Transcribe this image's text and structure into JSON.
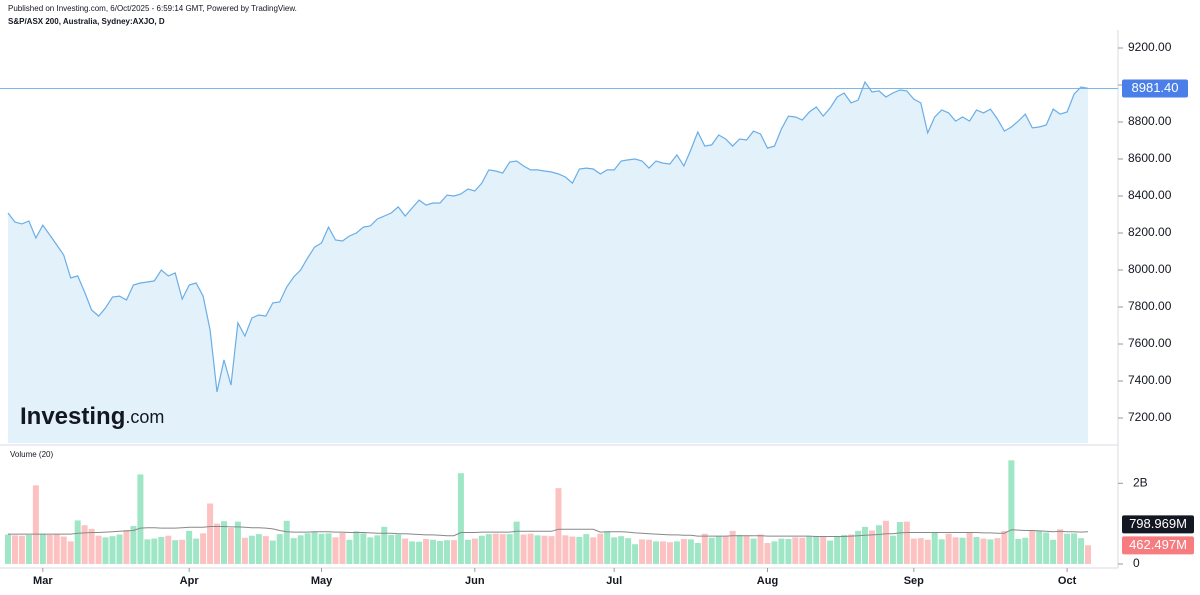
{
  "header": {
    "published": "Published on Investing.com, 6/Oct/2025 - 6:59:14 GMT, Powered by TradingView.",
    "symbol": "S&P/ASX 200, Australia, Sydney:AXJO, D"
  },
  "watermark": {
    "brand": "Investing",
    "suffix": ".com"
  },
  "chart_data": [
    {
      "type": "area",
      "line_color": "#6aaee6",
      "fill_color": "#e3f1fb",
      "values": [
        8308,
        8259,
        8249,
        8265,
        8173,
        8243,
        8189,
        8135,
        8081,
        7957,
        7968,
        7881,
        7784,
        7751,
        7795,
        7854,
        7859,
        7838,
        7919,
        7930,
        7935,
        7941,
        8000,
        7968,
        7984,
        7843,
        7919,
        7930,
        7859,
        7676,
        7341,
        7514,
        7378,
        7714,
        7643,
        7741,
        7757,
        7751,
        7822,
        7827,
        7908,
        7962,
        8000,
        8065,
        8124,
        8146,
        8232,
        8162,
        8157,
        8184,
        8200,
        8232,
        8238,
        8276,
        8292,
        8308,
        8341,
        8292,
        8335,
        8378,
        8351,
        8362,
        8362,
        8405,
        8400,
        8411,
        8438,
        8427,
        8470,
        8541,
        8535,
        8524,
        8584,
        8589,
        8562,
        8541,
        8541,
        8535,
        8530,
        8519,
        8503,
        8470,
        8546,
        8551,
        8546,
        8519,
        8541,
        8541,
        8589,
        8595,
        8600,
        8589,
        8551,
        8589,
        8578,
        8573,
        8622,
        8562,
        8649,
        8746,
        8670,
        8676,
        8730,
        8708,
        8670,
        8708,
        8703,
        8751,
        8735,
        8659,
        8670,
        8762,
        8832,
        8827,
        8811,
        8854,
        8881,
        8832,
        8876,
        8935,
        8957,
        8903,
        8919,
        9016,
        8962,
        8968,
        8935,
        8957,
        8973,
        8968,
        8924,
        8903,
        8741,
        8827,
        8865,
        8849,
        8805,
        8827,
        8805,
        8865,
        8849,
        8870,
        8816,
        8751,
        8773,
        8805,
        8843,
        8768,
        8773,
        8784,
        8870,
        8843,
        8854,
        8951,
        8989,
        8981.4
      ],
      "last_label": {
        "value": 8981.4,
        "label": "8981.40"
      },
      "last_color": "#4a7ee8",
      "xlim": [
        0,
        155
      ],
      "xticks": [
        {
          "value": 5,
          "label": "Mar"
        },
        {
          "value": 26,
          "label": "Apr"
        },
        {
          "value": 45,
          "label": "May"
        },
        {
          "value": 67,
          "label": "Jun"
        },
        {
          "value": 87,
          "label": "Jul"
        },
        {
          "value": 109,
          "label": "Aug"
        },
        {
          "value": 130,
          "label": "Sep"
        },
        {
          "value": 152,
          "label": "Oct"
        }
      ],
      "ylim": [
        7065,
        9300
      ],
      "yticks": [
        {
          "value": 7200,
          "label": "7200.00"
        },
        {
          "value": 7400,
          "label": "7400.00"
        },
        {
          "value": 7600,
          "label": "7600.00"
        },
        {
          "value": 7800,
          "label": "7800.00"
        },
        {
          "value": 8000,
          "label": "8000.00"
        },
        {
          "value": 8200,
          "label": "8200.00"
        },
        {
          "value": 8400,
          "label": "8400.00"
        },
        {
          "value": 8600,
          "label": "8600.00"
        },
        {
          "value": 8800,
          "label": "8800.00"
        },
        {
          "value": 9000,
          "label": "9000.00"
        },
        {
          "value": 9200,
          "label": "9200.00"
        }
      ]
    },
    {
      "type": "bar",
      "title": "Volume (20)",
      "up_color": "#9fe6c6",
      "down_color": "#fcc2c2",
      "ma_color": "#888888",
      "values": [
        730000000.0,
        710000000.0,
        700000000.0,
        720000000.0,
        1950000000.0,
        740000000.0,
        720000000.0,
        730000000.0,
        680000000.0,
        560000000.0,
        1080000000.0,
        960000000.0,
        870000000.0,
        700000000.0,
        660000000.0,
        690000000.0,
        730000000.0,
        840000000.0,
        940000000.0,
        2220000000.0,
        610000000.0,
        630000000.0,
        670000000.0,
        700000000.0,
        590000000.0,
        600000000.0,
        820000000.0,
        630000000.0,
        760000000.0,
        1500000000.0,
        1000000000.0,
        1060000000.0,
        890000000.0,
        1050000000.0,
        650000000.0,
        700000000.0,
        740000000.0,
        690000000.0,
        580000000.0,
        740000000.0,
        1070000000.0,
        640000000.0,
        710000000.0,
        760000000.0,
        790000000.0,
        750000000.0,
        760000000.0,
        660000000.0,
        770000000.0,
        600000000.0,
        810000000.0,
        760000000.0,
        660000000.0,
        710000000.0,
        920000000.0,
        720000000.0,
        730000000.0,
        630000000.0,
        560000000.0,
        550000000.0,
        620000000.0,
        600000000.0,
        570000000.0,
        590000000.0,
        590000000.0,
        2250000000.0,
        600000000.0,
        630000000.0,
        700000000.0,
        740000000.0,
        750000000.0,
        740000000.0,
        740000000.0,
        1050000000.0,
        730000000.0,
        750000000.0,
        710000000.0,
        700000000.0,
        690000000.0,
        1880000000.0,
        710000000.0,
        680000000.0,
        670000000.0,
        740000000.0,
        660000000.0,
        750000000.0,
        810000000.0,
        660000000.0,
        690000000.0,
        640000000.0,
        490000000.0,
        610000000.0,
        600000000.0,
        560000000.0,
        560000000.0,
        540000000.0,
        560000000.0,
        620000000.0,
        610000000.0,
        520000000.0,
        750000000.0,
        650000000.0,
        690000000.0,
        680000000.0,
        820000000.0,
        720000000.0,
        710000000.0,
        630000000.0,
        730000000.0,
        520000000.0,
        560000000.0,
        630000000.0,
        620000000.0,
        660000000.0,
        650000000.0,
        680000000.0,
        690000000.0,
        690000000.0,
        580000000.0,
        680000000.0,
        720000000.0,
        730000000.0,
        820000000.0,
        920000000.0,
        830000000.0,
        960000000.0,
        1070000000.0,
        700000000.0,
        1040000000.0,
        1050000000.0,
        630000000.0,
        640000000.0,
        600000000.0,
        780000000.0,
        610000000.0,
        750000000.0,
        660000000.0,
        650000000.0,
        780000000.0,
        670000000.0,
        630000000.0,
        610000000.0,
        640000000.0,
        820000000.0,
        2570000000.0,
        620000000.0,
        650000000.0,
        840000000.0,
        820000000.0,
        780000000.0,
        600000000.0,
        860000000.0,
        750000000.0,
        760000000.0,
        640000000.0,
        462497000.0
      ],
      "ma": [
        740000000.0,
        740000000.0,
        740000000.0,
        740000000.0,
        740000000.0,
        740000000.0,
        740000000.0,
        740000000.0,
        740000000.0,
        740000000.0,
        760000000.0,
        770000000.0,
        780000000.0,
        780000000.0,
        790000000.0,
        800000000.0,
        810000000.0,
        820000000.0,
        830000000.0,
        890000000.0,
        900000000.0,
        900000000.0,
        890000000.0,
        890000000.0,
        890000000.0,
        900000000.0,
        910000000.0,
        910000000.0,
        910000000.0,
        930000000.0,
        930000000.0,
        930000000.0,
        920000000.0,
        920000000.0,
        910000000.0,
        900000000.0,
        900000000.0,
        890000000.0,
        870000000.0,
        830000000.0,
        800000000.0,
        790000000.0,
        790000000.0,
        790000000.0,
        800000000.0,
        800000000.0,
        800000000.0,
        790000000.0,
        790000000.0,
        780000000.0,
        780000000.0,
        780000000.0,
        770000000.0,
        760000000.0,
        760000000.0,
        760000000.0,
        750000000.0,
        750000000.0,
        740000000.0,
        730000000.0,
        720000000.0,
        720000000.0,
        710000000.0,
        700000000.0,
        700000000.0,
        780000000.0,
        780000000.0,
        780000000.0,
        790000000.0,
        790000000.0,
        790000000.0,
        790000000.0,
        790000000.0,
        810000000.0,
        810000000.0,
        810000000.0,
        810000000.0,
        810000000.0,
        810000000.0,
        860000000.0,
        860000000.0,
        860000000.0,
        860000000.0,
        860000000.0,
        860000000.0,
        790000000.0,
        800000000.0,
        800000000.0,
        800000000.0,
        790000000.0,
        770000000.0,
        760000000.0,
        750000000.0,
        740000000.0,
        730000000.0,
        720000000.0,
        720000000.0,
        710000000.0,
        710000000.0,
        690000000.0,
        690000000.0,
        690000000.0,
        690000000.0,
        690000000.0,
        700000000.0,
        700000000.0,
        700000000.0,
        700000000.0,
        700000000.0,
        690000000.0,
        690000000.0,
        690000000.0,
        690000000.0,
        690000000.0,
        690000000.0,
        690000000.0,
        680000000.0,
        680000000.0,
        680000000.0,
        680000000.0,
        680000000.0,
        690000000.0,
        700000000.0,
        710000000.0,
        720000000.0,
        730000000.0,
        750000000.0,
        750000000.0,
        770000000.0,
        780000000.0,
        780000000.0,
        780000000.0,
        780000000.0,
        780000000.0,
        780000000.0,
        780000000.0,
        780000000.0,
        780000000.0,
        780000000.0,
        780000000.0,
        770000000.0,
        770000000.0,
        760000000.0,
        760000000.0,
        850000000.0,
        840000000.0,
        830000000.0,
        830000000.0,
        820000000.0,
        810000000.0,
        800000000.0,
        810000000.0,
        800000000.0,
        800000000.0,
        790000000.0,
        798969000.0
      ],
      "last_label": {
        "value": 462497000.0,
        "label": "462.497M"
      },
      "last_color": "#f77c80",
      "ma_label": {
        "value": 798969000.0,
        "label": "798.969M"
      },
      "ma_label_color": "#131722",
      "ylim": [
        -100000000.0,
        2900000000.0
      ],
      "yticks": [
        {
          "value": 0,
          "label": "0"
        },
        {
          "value": 2000000000.0,
          "label": "2B"
        }
      ]
    }
  ]
}
